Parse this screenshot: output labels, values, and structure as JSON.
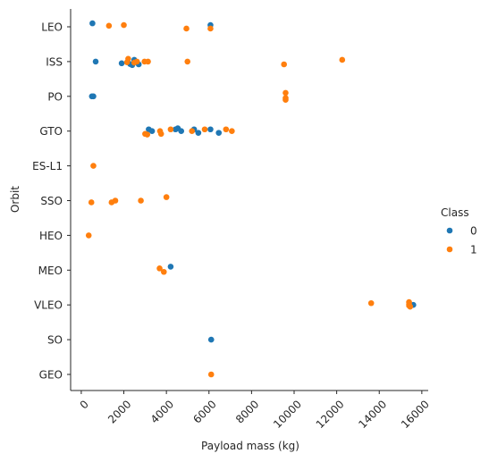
{
  "chart_data": {
    "type": "scatter",
    "title": "",
    "xlabel": "Payload mass (kg)",
    "ylabel": "Orbit",
    "xlim": [
      -500,
      16300
    ],
    "xticks": [
      0,
      2000,
      4000,
      6000,
      8000,
      10000,
      12000,
      14000,
      16000
    ],
    "categories": [
      "LEO",
      "ISS",
      "PO",
      "GTO",
      "ES-L1",
      "SSO",
      "HEO",
      "MEO",
      "VLEO",
      "SO",
      "GEO"
    ],
    "legend": {
      "title": "Class",
      "placement": "right",
      "entries": [
        "0",
        "1"
      ]
    },
    "series": [
      {
        "name": "0",
        "color": "#1f77b4",
        "points": [
          {
            "x": 525,
            "y": "LEO",
            "j": -0.1
          },
          {
            "x": 6070,
            "y": "LEO",
            "j": -0.05
          },
          {
            "x": 677,
            "y": "ISS",
            "j": 0.0
          },
          {
            "x": 1898,
            "y": "ISS",
            "j": 0.05
          },
          {
            "x": 2296,
            "y": "ISS",
            "j": 0.07
          },
          {
            "x": 2490,
            "y": "ISS",
            "j": -0.05
          },
          {
            "x": 2700,
            "y": "ISS",
            "j": 0.08
          },
          {
            "x": 2395,
            "y": "ISS",
            "j": 0.1
          },
          {
            "x": 500,
            "y": "PO",
            "j": 0.0
          },
          {
            "x": 570,
            "y": "PO",
            "j": 0.0
          },
          {
            "x": 3170,
            "y": "GTO",
            "j": -0.05
          },
          {
            "x": 3325,
            "y": "GTO",
            "j": 0.0
          },
          {
            "x": 4535,
            "y": "GTO",
            "j": -0.08
          },
          {
            "x": 4428,
            "y": "GTO",
            "j": -0.05
          },
          {
            "x": 5300,
            "y": "GTO",
            "j": -0.05
          },
          {
            "x": 5500,
            "y": "GTO",
            "j": 0.05
          },
          {
            "x": 6070,
            "y": "GTO",
            "j": -0.05
          },
          {
            "x": 6460,
            "y": "GTO",
            "j": 0.05
          },
          {
            "x": 4696,
            "y": "GTO",
            "j": 0.0
          },
          {
            "x": 4200,
            "y": "MEO",
            "j": -0.1
          },
          {
            "x": 15600,
            "y": "VLEO",
            "j": 0.0
          },
          {
            "x": 6104,
            "y": "SO",
            "j": 0.0
          }
        ]
      },
      {
        "name": "1",
        "color": "#ff7f0e",
        "points": [
          {
            "x": 1300,
            "y": "LEO",
            "j": -0.03
          },
          {
            "x": 2000,
            "y": "LEO",
            "j": -0.05
          },
          {
            "x": 4940,
            "y": "LEO",
            "j": 0.05
          },
          {
            "x": 6070,
            "y": "LEO",
            "j": 0.05
          },
          {
            "x": 2205,
            "y": "ISS",
            "j": -0.08
          },
          {
            "x": 2150,
            "y": "ISS",
            "j": 0.02
          },
          {
            "x": 2490,
            "y": "ISS",
            "j": 0.03
          },
          {
            "x": 2617,
            "y": "ISS",
            "j": 0.0
          },
          {
            "x": 2972,
            "y": "ISS",
            "j": 0.0
          },
          {
            "x": 3136,
            "y": "ISS",
            "j": 0.0
          },
          {
            "x": 4990,
            "y": "ISS",
            "j": 0.0
          },
          {
            "x": 9525,
            "y": "ISS",
            "j": 0.08
          },
          {
            "x": 12259,
            "y": "ISS",
            "j": -0.05
          },
          {
            "x": 9600,
            "y": "PO",
            "j": -0.1
          },
          {
            "x": 9600,
            "y": "PO",
            "j": 0.05
          },
          {
            "x": 9600,
            "y": "PO",
            "j": 0.1
          },
          {
            "x": 3000,
            "y": "GTO",
            "j": 0.08
          },
          {
            "x": 3100,
            "y": "GTO",
            "j": 0.1
          },
          {
            "x": 3700,
            "y": "GTO",
            "j": 0.0
          },
          {
            "x": 3750,
            "y": "GTO",
            "j": 0.08
          },
          {
            "x": 4200,
            "y": "GTO",
            "j": -0.05
          },
          {
            "x": 5200,
            "y": "GTO",
            "j": 0.0
          },
          {
            "x": 5800,
            "y": "GTO",
            "j": -0.05
          },
          {
            "x": 6800,
            "y": "GTO",
            "j": -0.05
          },
          {
            "x": 7075,
            "y": "GTO",
            "j": 0.0
          },
          {
            "x": 570,
            "y": "ES-L1",
            "j": 0.0
          },
          {
            "x": 475,
            "y": "SSO",
            "j": 0.05
          },
          {
            "x": 1425,
            "y": "SSO",
            "j": 0.05
          },
          {
            "x": 1600,
            "y": "SSO",
            "j": 0.0
          },
          {
            "x": 2800,
            "y": "SSO",
            "j": 0.0
          },
          {
            "x": 4000,
            "y": "SSO",
            "j": -0.1
          },
          {
            "x": 350,
            "y": "HEO",
            "j": 0.0
          },
          {
            "x": 3680,
            "y": "MEO",
            "j": -0.05
          },
          {
            "x": 3880,
            "y": "MEO",
            "j": 0.05
          },
          {
            "x": 13620,
            "y": "VLEO",
            "j": -0.05
          },
          {
            "x": 15400,
            "y": "VLEO",
            "j": -0.08
          },
          {
            "x": 15400,
            "y": "VLEO",
            "j": -0.02
          },
          {
            "x": 15400,
            "y": "VLEO",
            "j": 0.02
          },
          {
            "x": 15450,
            "y": "VLEO",
            "j": 0.05
          },
          {
            "x": 6104,
            "y": "GEO",
            "j": 0.0
          }
        ]
      }
    ]
  }
}
